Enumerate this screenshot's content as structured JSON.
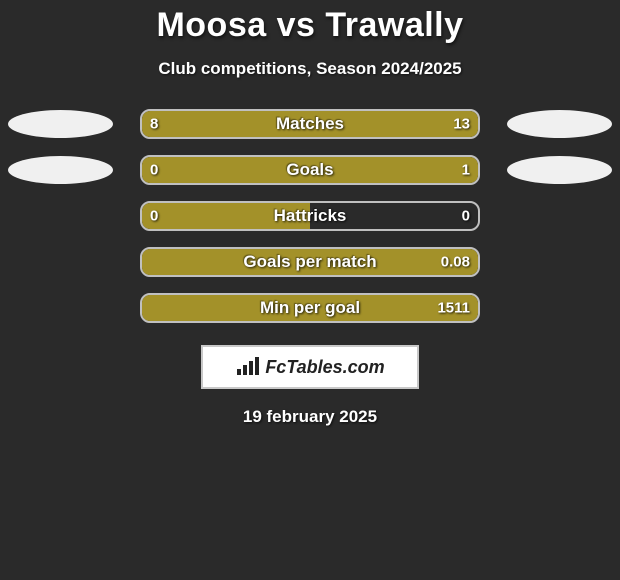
{
  "background_color": "#2a2a2a",
  "title": "Moosa vs Trawally",
  "title_fontsize": 34,
  "subtitle": "Club competitions, Season 2024/2025",
  "subtitle_fontsize": 17,
  "colors": {
    "left_fill": "#a39129",
    "right_fill": "#a39129",
    "track_border": "#c0c0c0",
    "ellipse": "#f0f0f0",
    "text": "#ffffff"
  },
  "rows": [
    {
      "label": "Matches",
      "left_value": "8",
      "right_value": "13",
      "left_raw": 8,
      "right_raw": 13,
      "left_pct": 38.1,
      "right_pct": 61.9,
      "show_left_ellipse": true,
      "show_right_ellipse": true
    },
    {
      "label": "Goals",
      "left_value": "0",
      "right_value": "1",
      "left_raw": 0,
      "right_raw": 1,
      "left_pct": 20.0,
      "right_pct": 80.0,
      "show_left_ellipse": true,
      "show_right_ellipse": true
    },
    {
      "label": "Hattricks",
      "left_value": "0",
      "right_value": "0",
      "left_raw": 0,
      "right_raw": 0,
      "left_pct": 50.0,
      "right_pct": 0.0,
      "show_left_ellipse": false,
      "show_right_ellipse": false
    },
    {
      "label": "Goals per match",
      "left_value": "",
      "right_value": "0.08",
      "left_raw": 0,
      "right_raw": 0.08,
      "left_pct": 0.0,
      "right_pct": 100.0,
      "show_left_ellipse": false,
      "show_right_ellipse": false
    },
    {
      "label": "Min per goal",
      "left_value": "",
      "right_value": "1511",
      "left_raw": 0,
      "right_raw": 1511,
      "left_pct": 0.0,
      "right_pct": 100.0,
      "show_left_ellipse": false,
      "show_right_ellipse": false
    }
  ],
  "brand": {
    "text": "FcTables.com"
  },
  "date": "19 february 2025",
  "date_fontsize": 17
}
